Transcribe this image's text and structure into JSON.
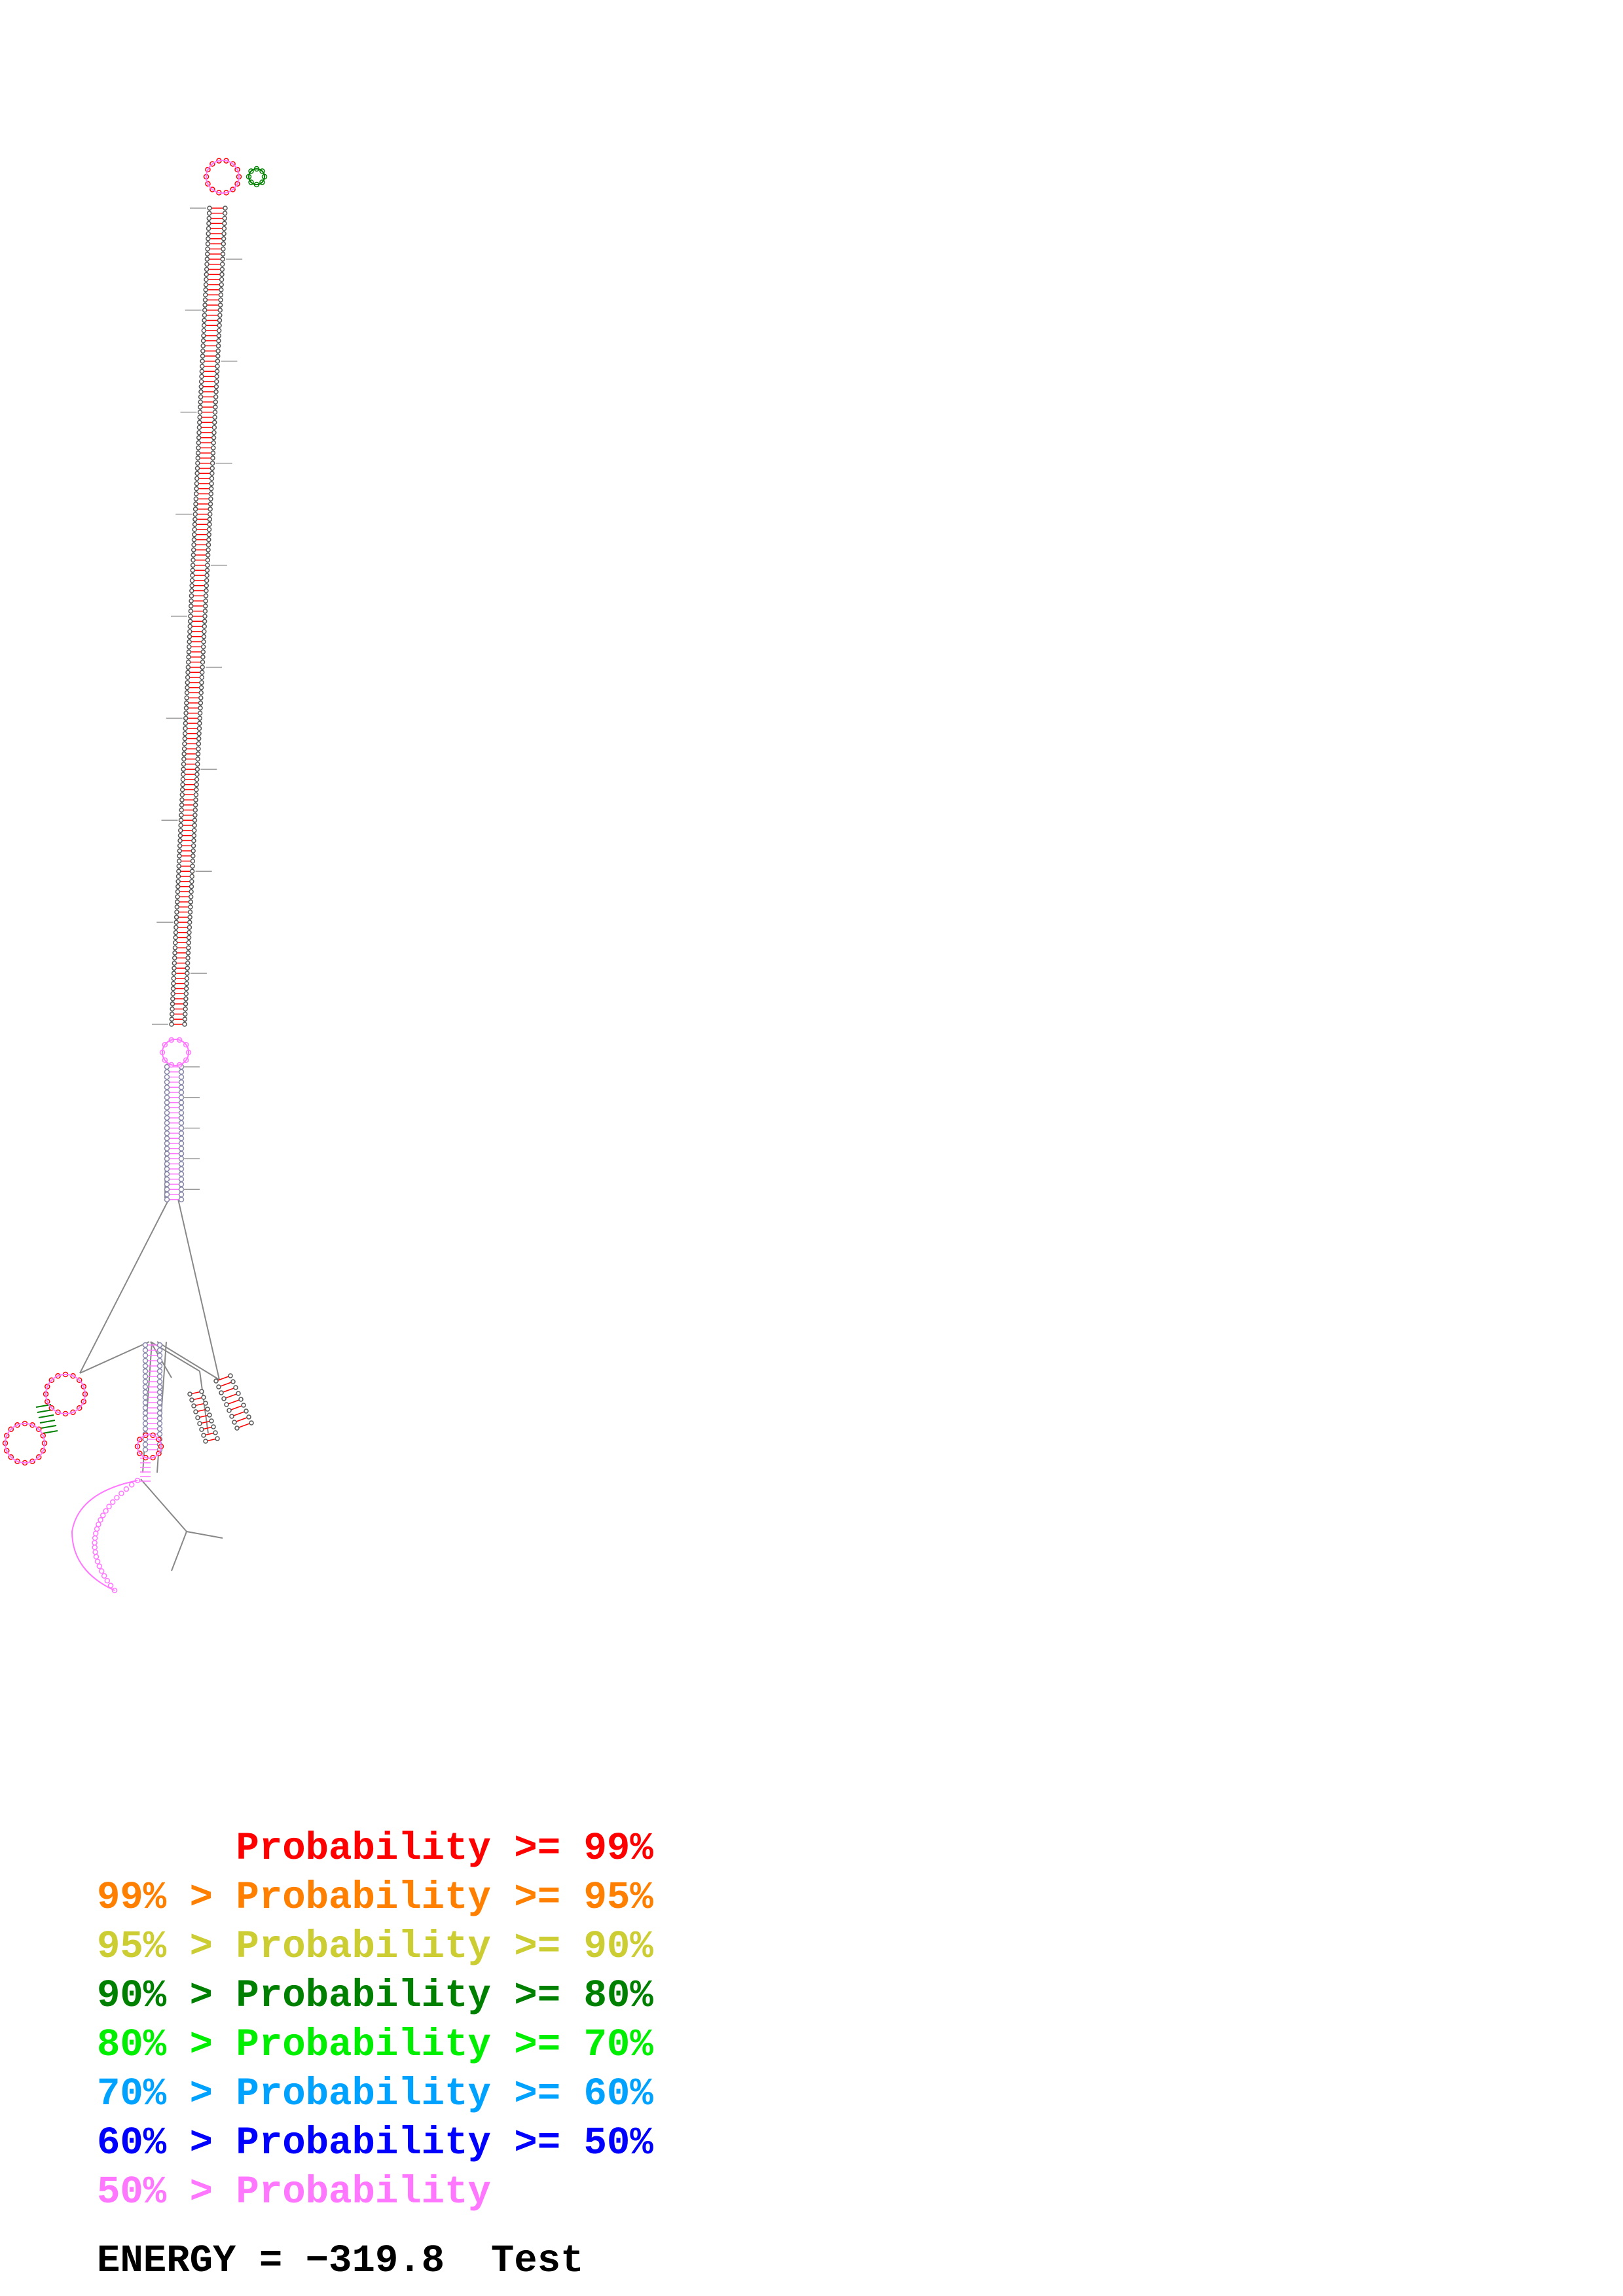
{
  "legend": [
    {
      "text": "      Probability >= 99%",
      "color": "#ff0000"
    },
    {
      "text": "99% > Probability >= 95%",
      "color": "#ff7f00"
    },
    {
      "text": "95% > Probability >= 90%",
      "color": "#cccc33"
    },
    {
      "text": "90% > Probability >= 80%",
      "color": "#008000"
    },
    {
      "text": "80% > Probability >= 70%",
      "color": "#00ee00"
    },
    {
      "text": "70% > Probability >= 60%",
      "color": "#00a2ff"
    },
    {
      "text": "60% > Probability >= 50%",
      "color": "#0000ff"
    },
    {
      "text": "50% > Probability",
      "color": "#ff77ff"
    }
  ],
  "energy_line": "ENERGY = −319.8  Test",
  "colors": {
    "background": "#ffffff",
    "backbone": "#888888",
    "nucleotide_outline": "#555555",
    "high_prob": "#ff0000",
    "mid_prob": "#008000",
    "low_prob": "#ff77ff",
    "blue_prob": "#0000ff"
  }
}
